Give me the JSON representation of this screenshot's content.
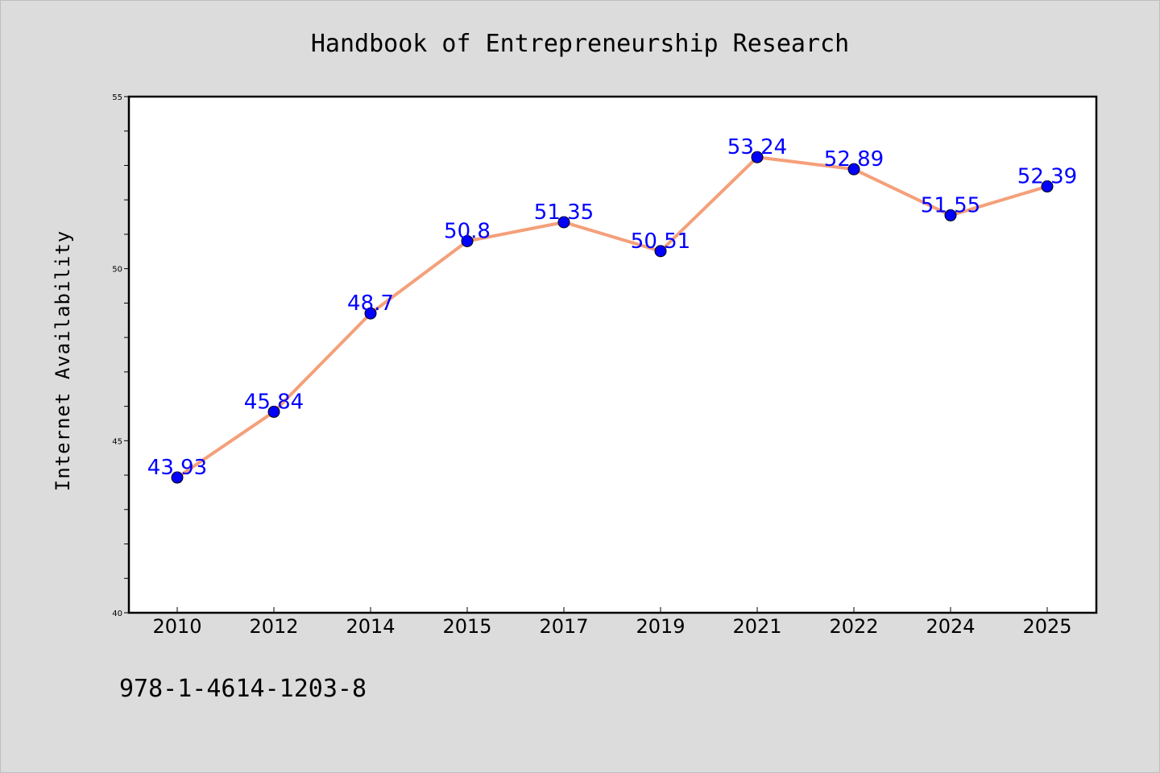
{
  "chart_data": {
    "type": "line",
    "title": "Handbook of Entrepreneurship Research",
    "xlabel": "",
    "ylabel": "Internet Availability",
    "categories": [
      "2010",
      "2012",
      "2014",
      "2015",
      "2017",
      "2019",
      "2021",
      "2022",
      "2024",
      "2025"
    ],
    "series": [
      {
        "values": [
          43.93,
          45.84,
          48.7,
          50.8,
          51.35,
          50.51,
          53.24,
          52.89,
          51.55,
          52.39
        ],
        "data_labels": [
          "43.93",
          "45.84",
          "48.7",
          "50.8",
          "51.35",
          "50.51",
          "53.24",
          "52.89",
          "51.55",
          "52.39"
        ]
      }
    ],
    "ylim": [
      40,
      55
    ],
    "yticks": [
      "40",
      "45",
      "50",
      "55"
    ],
    "grid": false,
    "legend": "none",
    "colors": {
      "line": "#f4a07a",
      "marker": "#0000ff",
      "data_label": "#0000ff",
      "plot_background": "#ffffff",
      "figure_background": "#dcdcdc"
    }
  },
  "footer": {
    "isbn": "978-1-4614-1203-8"
  }
}
